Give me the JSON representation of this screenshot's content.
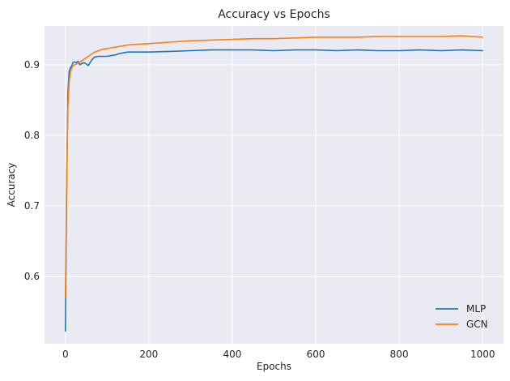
{
  "chart_data": {
    "type": "line",
    "title": "Accuracy vs Epochs",
    "xlabel": "Epochs",
    "ylabel": "Accuracy",
    "xlim": [
      -50,
      1050
    ],
    "ylim": [
      0.505,
      0.955
    ],
    "xticks": [
      0,
      200,
      400,
      600,
      800,
      1000
    ],
    "yticks": [
      0.6,
      0.7,
      0.8,
      0.9
    ],
    "grid": true,
    "legend": "lower-right",
    "series": [
      {
        "name": "MLP",
        "color": "#1f77b4",
        "x": [
          0,
          3,
          6,
          9,
          12,
          15,
          18,
          22,
          26,
          30,
          35,
          40,
          45,
          50,
          55,
          60,
          65,
          70,
          80,
          90,
          100,
          110,
          120,
          130,
          140,
          150,
          175,
          200,
          250,
          300,
          350,
          400,
          450,
          500,
          550,
          600,
          650,
          700,
          750,
          800,
          850,
          900,
          950,
          1000
        ],
        "y": [
          0.523,
          0.72,
          0.86,
          0.89,
          0.896,
          0.898,
          0.903,
          0.904,
          0.903,
          0.905,
          0.9,
          0.902,
          0.903,
          0.901,
          0.899,
          0.904,
          0.908,
          0.911,
          0.912,
          0.912,
          0.912,
          0.913,
          0.914,
          0.916,
          0.917,
          0.918,
          0.918,
          0.918,
          0.919,
          0.92,
          0.921,
          0.921,
          0.921,
          0.92,
          0.921,
          0.921,
          0.92,
          0.921,
          0.92,
          0.92,
          0.921,
          0.92,
          0.921,
          0.92
        ]
      },
      {
        "name": "GCN",
        "color": "#ff7f0e",
        "x": [
          0,
          3,
          6,
          9,
          12,
          15,
          18,
          22,
          26,
          30,
          35,
          40,
          45,
          50,
          55,
          60,
          65,
          70,
          80,
          90,
          100,
          110,
          120,
          130,
          140,
          150,
          175,
          200,
          250,
          300,
          350,
          400,
          450,
          500,
          550,
          600,
          650,
          700,
          750,
          800,
          850,
          900,
          950,
          1000
        ],
        "y": [
          0.571,
          0.74,
          0.84,
          0.875,
          0.89,
          0.895,
          0.898,
          0.9,
          0.901,
          0.902,
          0.904,
          0.906,
          0.908,
          0.91,
          0.912,
          0.914,
          0.916,
          0.918,
          0.92,
          0.922,
          0.923,
          0.924,
          0.925,
          0.926,
          0.927,
          0.928,
          0.929,
          0.93,
          0.932,
          0.934,
          0.935,
          0.936,
          0.937,
          0.937,
          0.938,
          0.939,
          0.939,
          0.939,
          0.94,
          0.94,
          0.94,
          0.94,
          0.941,
          0.939
        ]
      }
    ]
  }
}
